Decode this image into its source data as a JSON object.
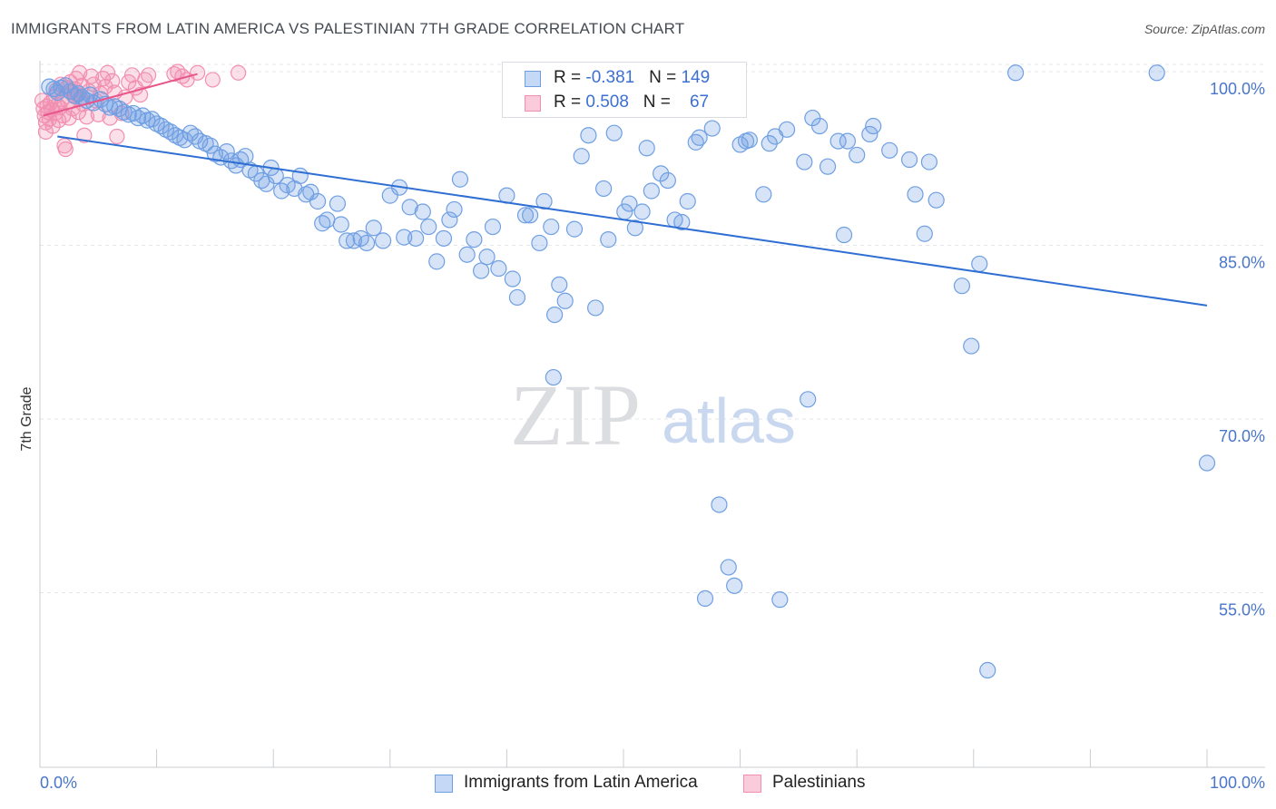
{
  "title": "IMMIGRANTS FROM LATIN AMERICA VS PALESTINIAN 7TH GRADE CORRELATION CHART",
  "source": "Source: ZipAtlas.com",
  "watermark": {
    "zip": "ZIP",
    "atlas": "atlas"
  },
  "legend": {
    "series_a": {
      "r_label": "R = ",
      "r_value": "-0.381",
      "n_label": "N = ",
      "n_value": "149"
    },
    "series_b": {
      "r_label": "R = ",
      "r_value": "0.508",
      "n_label": "N = ",
      "n_value": "67"
    }
  },
  "chart_data": {
    "type": "scatter",
    "title": "IMMIGRANTS FROM LATIN AMERICA VS PALESTINIAN 7TH GRADE CORRELATION CHART",
    "xlabel": "",
    "ylabel": "7th Grade",
    "xlim": [
      0,
      100
    ],
    "ylim": [
      40,
      101.5
    ],
    "x_tick_labels": [
      "0.0%",
      "100.0%"
    ],
    "y_ticks": [
      100,
      85,
      70,
      55
    ],
    "y_tick_labels": [
      "100.0%",
      "85.0%",
      "70.0%",
      "55.0%"
    ],
    "grid": true,
    "colors": {
      "series_a": "#6f9fe3",
      "series_a_line": "#2f6fd3",
      "series_b": "#f28fb1",
      "series_b_line": "#e8558a",
      "tick": "#4a76c8"
    },
    "series": [
      {
        "name": "Immigrants from Latin America",
        "r": -0.381,
        "n": 149,
        "trend": {
          "x": [
            1.5,
            100
          ],
          "y": [
            94.4,
            79.8
          ]
        },
        "points": [
          [
            0.8,
            98.7
          ],
          [
            1.2,
            98.5
          ],
          [
            1.5,
            98.2
          ],
          [
            1.8,
            98.6
          ],
          [
            2.2,
            98.8
          ],
          [
            2.6,
            98.3
          ],
          [
            3.0,
            97.9
          ],
          [
            3.3,
            98.1
          ],
          [
            3.6,
            97.8
          ],
          [
            4.0,
            97.5
          ],
          [
            4.3,
            98.0
          ],
          [
            4.6,
            97.3
          ],
          [
            5.2,
            97.6
          ],
          [
            5.6,
            97.2
          ],
          [
            6.0,
            96.9
          ],
          [
            6.4,
            97.0
          ],
          [
            6.8,
            96.8
          ],
          [
            7.2,
            96.5
          ],
          [
            7.6,
            96.3
          ],
          [
            8.0,
            96.4
          ],
          [
            8.4,
            96.0
          ],
          [
            8.8,
            96.2
          ],
          [
            9.2,
            95.8
          ],
          [
            9.6,
            95.9
          ],
          [
            10.0,
            95.5
          ],
          [
            10.4,
            95.3
          ],
          [
            10.8,
            95.0
          ],
          [
            11.2,
            94.8
          ],
          [
            11.6,
            94.5
          ],
          [
            12.0,
            94.3
          ],
          [
            12.4,
            94.1
          ],
          [
            12.9,
            94.7
          ],
          [
            13.3,
            94.4
          ],
          [
            13.7,
            94.0
          ],
          [
            14.2,
            93.8
          ],
          [
            14.6,
            93.6
          ],
          [
            15.0,
            92.9
          ],
          [
            15.5,
            92.6
          ],
          [
            16.0,
            93.1
          ],
          [
            16.4,
            92.3
          ],
          [
            16.8,
            91.9
          ],
          [
            17.2,
            92.4
          ],
          [
            17.6,
            92.7
          ],
          [
            18.0,
            91.5
          ],
          [
            18.5,
            91.2
          ],
          [
            19.0,
            90.6
          ],
          [
            19.4,
            90.3
          ],
          [
            19.8,
            91.7
          ],
          [
            20.2,
            91.0
          ],
          [
            20.7,
            89.7
          ],
          [
            21.2,
            90.2
          ],
          [
            21.8,
            89.9
          ],
          [
            22.3,
            91.0
          ],
          [
            22.8,
            89.4
          ],
          [
            23.2,
            89.6
          ],
          [
            23.8,
            88.8
          ],
          [
            24.2,
            86.9
          ],
          [
            24.6,
            87.2
          ],
          [
            25.5,
            88.6
          ],
          [
            25.8,
            86.8
          ],
          [
            26.3,
            85.4
          ],
          [
            26.9,
            85.4
          ],
          [
            27.5,
            85.6
          ],
          [
            28.0,
            85.2
          ],
          [
            28.6,
            86.5
          ],
          [
            29.4,
            85.4
          ],
          [
            30.0,
            89.3
          ],
          [
            30.8,
            90.0
          ],
          [
            31.2,
            85.7
          ],
          [
            31.7,
            88.3
          ],
          [
            32.2,
            85.6
          ],
          [
            32.8,
            87.9
          ],
          [
            33.3,
            86.6
          ],
          [
            34.0,
            83.6
          ],
          [
            34.6,
            85.6
          ],
          [
            35.1,
            87.2
          ],
          [
            35.5,
            88.1
          ],
          [
            36.0,
            90.7
          ],
          [
            36.6,
            84.2
          ],
          [
            37.2,
            85.5
          ],
          [
            37.8,
            82.8
          ],
          [
            38.3,
            84.0
          ],
          [
            38.8,
            86.6
          ],
          [
            39.3,
            83.0
          ],
          [
            40.0,
            89.3
          ],
          [
            40.5,
            82.1
          ],
          [
            40.9,
            80.5
          ],
          [
            41.6,
            87.6
          ],
          [
            42.0,
            87.6
          ],
          [
            42.8,
            85.2
          ],
          [
            43.2,
            88.8
          ],
          [
            43.8,
            86.6
          ],
          [
            44.1,
            79.0
          ],
          [
            44.5,
            81.6
          ],
          [
            45.0,
            80.2
          ],
          [
            44.0,
            73.6
          ],
          [
            45.8,
            86.4
          ],
          [
            46.4,
            92.7
          ],
          [
            47.0,
            94.5
          ],
          [
            47.6,
            79.6
          ],
          [
            48.3,
            89.9
          ],
          [
            48.7,
            85.5
          ],
          [
            49.2,
            94.7
          ],
          [
            50.1,
            87.9
          ],
          [
            50.5,
            88.6
          ],
          [
            51.0,
            86.5
          ],
          [
            51.6,
            87.9
          ],
          [
            52.0,
            93.4
          ],
          [
            52.4,
            89.7
          ],
          [
            53.2,
            91.2
          ],
          [
            53.8,
            90.6
          ],
          [
            54.4,
            87.2
          ],
          [
            55.0,
            87.0
          ],
          [
            55.5,
            88.8
          ],
          [
            56.2,
            93.9
          ],
          [
            56.5,
            94.3
          ],
          [
            57.6,
            95.1
          ],
          [
            58.2,
            62.6
          ],
          [
            59.0,
            57.2
          ],
          [
            59.5,
            55.6
          ],
          [
            57.0,
            54.5
          ],
          [
            60.0,
            93.7
          ],
          [
            60.5,
            94.0
          ],
          [
            60.8,
            94.1
          ],
          [
            62.0,
            89.4
          ],
          [
            62.5,
            93.8
          ],
          [
            63.0,
            94.4
          ],
          [
            63.4,
            54.4
          ],
          [
            64.0,
            95.0
          ],
          [
            65.5,
            92.2
          ],
          [
            65.8,
            71.7
          ],
          [
            66.2,
            96.0
          ],
          [
            66.8,
            95.3
          ],
          [
            67.5,
            91.8
          ],
          [
            68.4,
            94.0
          ],
          [
            68.9,
            85.9
          ],
          [
            69.2,
            94.0
          ],
          [
            70.0,
            92.8
          ],
          [
            71.1,
            94.6
          ],
          [
            71.4,
            95.3
          ],
          [
            72.8,
            93.2
          ],
          [
            74.5,
            92.4
          ],
          [
            75.0,
            89.4
          ],
          [
            75.8,
            86.0
          ],
          [
            76.2,
            92.2
          ],
          [
            76.8,
            88.9
          ],
          [
            79.0,
            81.5
          ],
          [
            79.8,
            76.3
          ],
          [
            80.5,
            83.4
          ],
          [
            81.2,
            48.3
          ],
          [
            83.6,
            99.9
          ],
          [
            95.7,
            99.9
          ],
          [
            100.0,
            66.2
          ]
        ]
      },
      {
        "name": "Palestinians",
        "r": 0.508,
        "n": 67,
        "trend": {
          "x": [
            0.3,
            13.5
          ],
          "y": [
            96.2,
            99.8
          ]
        },
        "points": [
          [
            0.2,
            97.5
          ],
          [
            0.3,
            96.8
          ],
          [
            0.4,
            96.2
          ],
          [
            0.5,
            95.6
          ],
          [
            0.5,
            94.8
          ],
          [
            0.6,
            97.0
          ],
          [
            0.7,
            96.5
          ],
          [
            0.8,
            95.9
          ],
          [
            0.9,
            97.3
          ],
          [
            1.0,
            96.7
          ],
          [
            1.1,
            95.3
          ],
          [
            1.2,
            97.8
          ],
          [
            1.3,
            96.4
          ],
          [
            1.4,
            98.4
          ],
          [
            1.5,
            97.1
          ],
          [
            1.6,
            95.8
          ],
          [
            1.7,
            96.9
          ],
          [
            1.8,
            98.9
          ],
          [
            1.9,
            97.6
          ],
          [
            2.0,
            96.2
          ],
          [
            2.1,
            93.6
          ],
          [
            2.2,
            93.3
          ],
          [
            2.3,
            98.6
          ],
          [
            2.4,
            97.4
          ],
          [
            2.5,
            96.0
          ],
          [
            2.6,
            99.1
          ],
          [
            2.7,
            98.2
          ],
          [
            2.8,
            96.8
          ],
          [
            2.9,
            97.9
          ],
          [
            3.0,
            98.5
          ],
          [
            3.1,
            99.4
          ],
          [
            3.2,
            98.0
          ],
          [
            3.3,
            96.5
          ],
          [
            3.4,
            99.9
          ],
          [
            3.5,
            97.7
          ],
          [
            3.6,
            98.8
          ],
          [
            3.7,
            97.2
          ],
          [
            3.8,
            94.5
          ],
          [
            4.0,
            96.1
          ],
          [
            4.2,
            98.3
          ],
          [
            4.4,
            99.6
          ],
          [
            4.6,
            98.9
          ],
          [
            4.8,
            97.5
          ],
          [
            5.0,
            96.3
          ],
          [
            5.2,
            98.1
          ],
          [
            5.4,
            99.4
          ],
          [
            5.6,
            98.7
          ],
          [
            5.8,
            99.9
          ],
          [
            6.0,
            96.0
          ],
          [
            6.2,
            99.2
          ],
          [
            6.4,
            98.2
          ],
          [
            6.6,
            94.4
          ],
          [
            7.0,
            96.4
          ],
          [
            7.3,
            97.8
          ],
          [
            7.6,
            99.1
          ],
          [
            7.9,
            99.7
          ],
          [
            8.2,
            98.6
          ],
          [
            8.6,
            98.0
          ],
          [
            9.0,
            99.3
          ],
          [
            9.3,
            99.7
          ],
          [
            11.5,
            99.8
          ],
          [
            11.8,
            100.0
          ],
          [
            12.2,
            99.6
          ],
          [
            12.6,
            99.3
          ],
          [
            13.5,
            99.9
          ],
          [
            14.8,
            99.3
          ],
          [
            17.0,
            99.9
          ]
        ]
      }
    ]
  },
  "bottom_legend": {
    "series_a": "Immigrants from Latin America",
    "series_b": "Palestinians"
  }
}
